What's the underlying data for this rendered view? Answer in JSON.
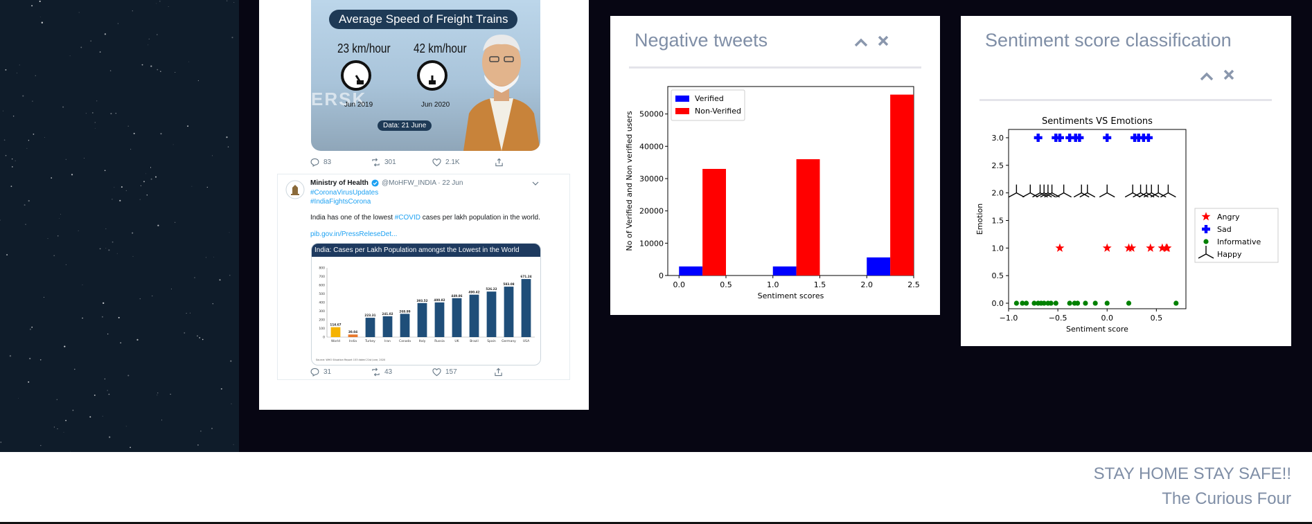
{
  "tweets": {
    "tweet1": {
      "image_heading": "Average Speed of Freight Trains",
      "speed1": "23 km/hour",
      "date1": "Jun 2019",
      "speed2": "42 km/hour",
      "date2": "Jun 2020",
      "data_date": "Data: 21 June",
      "container_text": "ERSK",
      "actions": {
        "replies": "83",
        "retweets": "301",
        "likes": "2.1K"
      }
    },
    "tweet2": {
      "author": "Ministry of Health",
      "handle": "@MoHFW_INDIA · 22 Jun",
      "hashtag1": "#CoronaVirusUpdates",
      "hashtag2": "#IndiaFightsCorona",
      "text_pre": "India has one of the lowest ",
      "text_tag": "#COVID",
      "text_post": " cases per lakh population in the world.",
      "link": "pib.gov.in/PressReleseDet...",
      "card_title": "India: Cases per Lakh Population amongst the Lowest in the World",
      "card_source": "Source: WHO Situation Report 153 dated 21st June, 2020",
      "actions": {
        "replies": "31",
        "retweets": "43",
        "likes": "157"
      }
    }
  },
  "panels": {
    "negative": {
      "title": "Negative tweets"
    },
    "sentiment": {
      "title": "Sentiment score classification"
    }
  },
  "footer": {
    "line1": "STAY HOME STAY SAFE!!",
    "line2": "The Curious Four"
  },
  "chart_data": [
    {
      "id": "cases_per_lakh",
      "type": "bar",
      "categories": [
        "World",
        "India",
        "Turkey",
        "Iran",
        "Canada",
        "Italy",
        "Russia",
        "UK",
        "Brazil",
        "Spain",
        "Germany",
        "USA"
      ],
      "values": [
        114.67,
        30.04,
        223.31,
        241.02,
        268.99,
        393.52,
        400.82,
        449.86,
        490.42,
        526.22,
        583.08,
        671.24
      ],
      "value_labels": [
        "114.67",
        "30.04",
        "223.31",
        "241.02",
        "268.99",
        "393.52",
        "400.82",
        "449.86",
        "490.42",
        "526.22",
        "583.08",
        "671.24"
      ],
      "ylim": [
        0,
        800
      ],
      "yticks": [
        "0",
        "100",
        "200",
        "300",
        "400",
        "500",
        "600",
        "700",
        "800"
      ],
      "colors": {
        "World": "#f5b301",
        "India": "#e8782a",
        "other": "#1f4e79"
      }
    },
    {
      "id": "negative_tweets",
      "type": "bar",
      "x": [
        0,
        1,
        2
      ],
      "series": [
        {
          "name": "Verified",
          "color": "#0000ff",
          "values": [
            2800,
            2800,
            5600
          ]
        },
        {
          "name": "Non-Verified",
          "color": "#ff0000",
          "values": [
            33000,
            36000,
            56000
          ]
        }
      ],
      "bar_offsets": [
        0,
        0.25
      ],
      "bar_width": 0.25,
      "xlim": [
        -0.12,
        2.5
      ],
      "ylim": [
        0,
        58500
      ],
      "xticks": [
        "0.0",
        "0.5",
        "1.0",
        "1.5",
        "2.0",
        "2.5"
      ],
      "yticks": [
        "0",
        "10000",
        "20000",
        "30000",
        "40000",
        "50000"
      ],
      "xlabel": "Sentiment scores",
      "ylabel": "No of Verified and Non verified users",
      "legend": "top-left"
    },
    {
      "id": "sentiments_vs_emotions",
      "type": "scatter",
      "title": "Sentiments VS Emotions",
      "xlabel": "Sentiment score",
      "ylabel": "Emotion",
      "xlim": [
        -1.0,
        0.8
      ],
      "ylim": [
        -0.1,
        3.15
      ],
      "xticks": [
        "−1.0",
        "−0.5",
        "0.0",
        "0.5"
      ],
      "yticks": [
        "0.0",
        "0.5",
        "1.0",
        "1.5",
        "2.0",
        "2.5",
        "3.0"
      ],
      "legend": "right",
      "series": [
        {
          "name": "Angry",
          "marker": "star",
          "color": "#ff0000",
          "y": 1,
          "x": [
            -0.48,
            0.0,
            0.22,
            0.25,
            0.44,
            0.56,
            0.6,
            0.61
          ]
        },
        {
          "name": "Sad",
          "marker": "plus",
          "color": "#0000ff",
          "y": 3,
          "x": [
            -0.7,
            -0.52,
            -0.48,
            -0.38,
            -0.32,
            -0.28,
            0.0,
            0.28,
            0.32,
            0.37,
            0.42
          ]
        },
        {
          "name": "Informative",
          "marker": "dot",
          "color": "#008000",
          "y": 0,
          "x": [
            -0.92,
            -0.86,
            -0.82,
            -0.74,
            -0.7,
            -0.67,
            -0.64,
            -0.6,
            -0.57,
            -0.52,
            -0.38,
            -0.33,
            -0.3,
            -0.22,
            -0.12,
            0.0,
            0.22,
            0.7
          ]
        },
        {
          "name": "Happy",
          "marker": "tri",
          "color": "#000000",
          "y": 2,
          "x": [
            -0.92,
            -0.78,
            -0.68,
            -0.64,
            -0.6,
            -0.56,
            -0.44,
            -0.26,
            -0.2,
            0.0,
            0.26,
            0.34,
            0.4,
            0.45,
            0.52,
            0.62
          ]
        }
      ]
    }
  ]
}
